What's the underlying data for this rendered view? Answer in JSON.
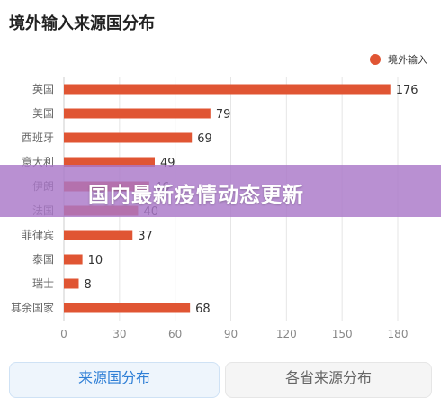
{
  "page": {
    "title": "境外输入来源国分布",
    "banner_text": "国内最新疫情动态更新"
  },
  "tabs": [
    {
      "label": "来源国分布"
    },
    {
      "label": "各省来源分布"
    }
  ],
  "colors": {
    "bar": "#e05533",
    "banner": "#aa78c8",
    "tab_active_text": "#2f7fd6"
  },
  "chart_data": {
    "type": "bar",
    "orientation": "horizontal",
    "title": "境外输入来源国分布",
    "legend": {
      "entries": [
        "境外输入"
      ],
      "placement": "top-right"
    },
    "categories": [
      "英国",
      "美国",
      "西班牙",
      "意大利",
      "伊朗",
      "法国",
      "菲律宾",
      "泰国",
      "瑞士",
      "其余国家"
    ],
    "series": [
      {
        "name": "境外输入",
        "values": [
          176,
          79,
          69,
          49,
          46,
          40,
          37,
          10,
          8,
          68
        ]
      }
    ],
    "xlim": [
      0,
      180
    ],
    "xticks": [
      0,
      30,
      60,
      90,
      120,
      150,
      180
    ],
    "grid": "vertical",
    "data_labels": true
  }
}
